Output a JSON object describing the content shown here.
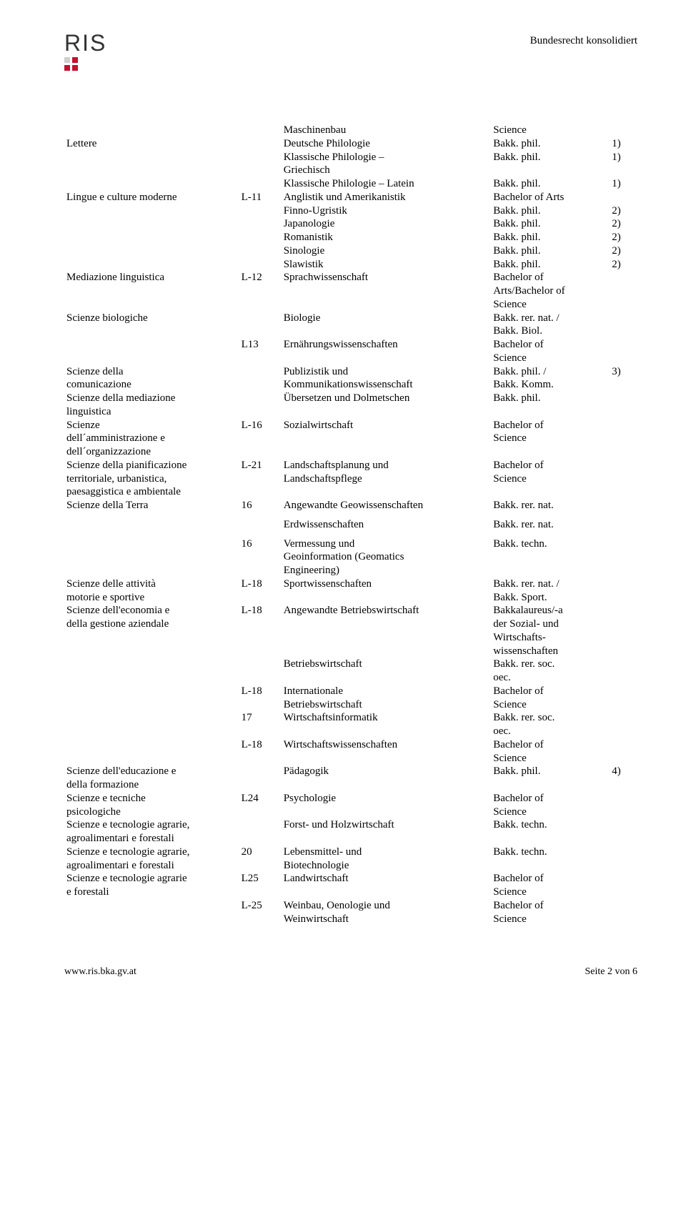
{
  "header": {
    "logo_text": "RIS",
    "right_text": "Bundesrecht konsolidiert"
  },
  "rows": [
    {
      "col1": "",
      "col2": "",
      "col3": "Maschinenbau",
      "col4": "Science",
      "col5": ""
    },
    {
      "col1": "Lettere",
      "col2": "",
      "col3": "Deutsche Philologie",
      "col4": "Bakk. phil.",
      "col5": "1)"
    },
    {
      "col1": "",
      "col2": "",
      "col3": "Klassische Philologie –",
      "col4": "Bakk. phil.",
      "col5": "1)"
    },
    {
      "col1": "",
      "col2": "",
      "col3": "Griechisch",
      "col4": "",
      "col5": ""
    },
    {
      "col1": "",
      "col2": "",
      "col3": "Klassische Philologie – Latein",
      "col4": "Bakk. phil.",
      "col5": "1)"
    },
    {
      "col1": "Lingue e culture moderne",
      "col2": "L-11",
      "col3": "Anglistik und Amerikanistik",
      "col4": "Bachelor of Arts",
      "col5": ""
    },
    {
      "col1": "",
      "col2": "",
      "col3": "Finno-Ugristik",
      "col4": "Bakk. phil.",
      "col5": "2)"
    },
    {
      "col1": "",
      "col2": "",
      "col3": "Japanologie",
      "col4": "Bakk. phil.",
      "col5": "2)"
    },
    {
      "col1": "",
      "col2": "",
      "col3": "Romanistik",
      "col4": "Bakk. phil.",
      "col5": "2)"
    },
    {
      "col1": "",
      "col2": "",
      "col3": "Sinologie",
      "col4": "Bakk. phil.",
      "col5": "2)"
    },
    {
      "col1": "",
      "col2": "",
      "col3": "Slawistik",
      "col4": "Bakk. phil.",
      "col5": "2)"
    },
    {
      "col1": "Mediazione linguistica",
      "col2": "L-12",
      "col3": "Sprachwissenschaft",
      "col4": "Bachelor of",
      "col5": ""
    },
    {
      "col1": "",
      "col2": "",
      "col3": "",
      "col4": "Arts/Bachelor of",
      "col5": ""
    },
    {
      "col1": "",
      "col2": "",
      "col3": "",
      "col4": "Science",
      "col5": ""
    },
    {
      "col1": "Scienze biologiche",
      "col2": "",
      "col3": "Biologie",
      "col4": "Bakk. rer. nat. /",
      "col5": ""
    },
    {
      "col1": "",
      "col2": "",
      "col3": "",
      "col4": "Bakk. Biol.",
      "col5": ""
    },
    {
      "col1": "",
      "col2": "L13",
      "col3": "Ernährungswissenschaften",
      "col4": "Bachelor of",
      "col5": ""
    },
    {
      "col1": "",
      "col2": "",
      "col3": "",
      "col4": "Science",
      "col5": ""
    },
    {
      "col1": "Scienze della",
      "col2": "",
      "col3": "Publizistik und",
      "col4": "Bakk. phil. /",
      "col5": "3)"
    },
    {
      "col1": "comunicazione",
      "col2": "",
      "col3": "Kommunikationswissenschaft",
      "col4": "Bakk. Komm.",
      "col5": ""
    },
    {
      "col1": "Scienze della mediazione",
      "col2": "",
      "col3": "Übersetzen und Dolmetschen",
      "col4": "Bakk. phil.",
      "col5": ""
    },
    {
      "col1": "linguistica",
      "col2": "",
      "col3": "",
      "col4": "",
      "col5": ""
    },
    {
      "col1": "Scienze",
      "col2": "L-16",
      "col3": "Sozialwirtschaft",
      "col4": "Bachelor of",
      "col5": ""
    },
    {
      "col1": "dell´amministrazione e",
      "col2": "",
      "col3": "",
      "col4": "Science",
      "col5": ""
    },
    {
      "col1": "dell´organizzazione",
      "col2": "",
      "col3": "",
      "col4": "",
      "col5": ""
    },
    {
      "col1": "Scienze della pianificazione",
      "col2": "L-21",
      "col3": "Landschaftsplanung und",
      "col4": "Bachelor of",
      "col5": ""
    },
    {
      "col1": "territoriale, urbanistica,",
      "col2": "",
      "col3": "Landschaftspflege",
      "col4": "Science",
      "col5": ""
    },
    {
      "col1": "paesaggistica e ambientale",
      "col2": "",
      "col3": "",
      "col4": "",
      "col5": ""
    },
    {
      "col1": "Scienze della Terra",
      "col2": "16",
      "col3": "Angewandte Geowissenschaften",
      "col4": "Bakk. rer. nat.",
      "col5": ""
    },
    {
      "spacer": true
    },
    {
      "col1": "",
      "col2": "",
      "col3": "Erdwissenschaften",
      "col4": "Bakk. rer. nat.",
      "col5": ""
    },
    {
      "spacer": true
    },
    {
      "col1": "",
      "col2": "16",
      "col3": "Vermessung und",
      "col4": "Bakk. techn.",
      "col5": ""
    },
    {
      "col1": "",
      "col2": "",
      "col3": "Geoinformation (Geomatics",
      "col4": "",
      "col5": ""
    },
    {
      "col1": "",
      "col2": "",
      "col3": "Engineering)",
      "col4": "",
      "col5": ""
    },
    {
      "col1": "Scienze delle attività",
      "col2": "L-18",
      "col3": "Sportwissenschaften",
      "col4": "Bakk. rer. nat. /",
      "col5": ""
    },
    {
      "col1": "motorie e sportive",
      "col2": "",
      "col3": "",
      "col4": "Bakk. Sport.",
      "col5": ""
    },
    {
      "col1": "Scienze dell'economia e",
      "col2": "L-18",
      "col3": "Angewandte Betriebswirtschaft",
      "col4": "Bakkalaureus/-a",
      "col5": ""
    },
    {
      "col1": "della gestione aziendale",
      "col2": "",
      "col3": "",
      "col4": "der Sozial- und",
      "col5": ""
    },
    {
      "col1": "",
      "col2": "",
      "col3": "",
      "col4": "Wirtschafts-",
      "col5": ""
    },
    {
      "col1": "",
      "col2": "",
      "col3": "",
      "col4": "wissenschaften",
      "col5": ""
    },
    {
      "col1": "",
      "col2": "",
      "col3": "Betriebswirtschaft",
      "col4": "Bakk. rer. soc.",
      "col5": ""
    },
    {
      "col1": "",
      "col2": "",
      "col3": "",
      "col4": "oec.",
      "col5": ""
    },
    {
      "col1": "",
      "col2": "L-18",
      "col3": "Internationale",
      "col4": "Bachelor of",
      "col5": ""
    },
    {
      "col1": "",
      "col2": "",
      "col3": "Betriebswirtschaft",
      "col4": "Science",
      "col5": ""
    },
    {
      "col1": "",
      "col2": "17",
      "col3": "Wirtschaftsinformatik",
      "col4": "Bakk. rer. soc.",
      "col5": ""
    },
    {
      "col1": "",
      "col2": "",
      "col3": "",
      "col4": "oec.",
      "col5": ""
    },
    {
      "col1": "",
      "col2": "L-18",
      "col3": "Wirtschaftswissenschaften",
      "col4": "Bachelor of",
      "col5": ""
    },
    {
      "col1": "",
      "col2": "",
      "col3": "",
      "col4": "Science",
      "col5": ""
    },
    {
      "col1": "Scienze dell'educazione e",
      "col2": "",
      "col3": "Pädagogik",
      "col4": "Bakk. phil.",
      "col5": "4)"
    },
    {
      "col1": "della formazione",
      "col2": "",
      "col3": "",
      "col4": "",
      "col5": ""
    },
    {
      "col1": "Scienze e tecniche",
      "col2": "L24",
      "col3": "Psychologie",
      "col4": "Bachelor of",
      "col5": ""
    },
    {
      "col1": "psicologiche",
      "col2": "",
      "col3": "",
      "col4": "Science",
      "col5": ""
    },
    {
      "col1": "Scienze e tecnologie agrarie,",
      "col2": "",
      "col3": "Forst- und Holzwirtschaft",
      "col4": "Bakk. techn.",
      "col5": ""
    },
    {
      "col1": "agroalimentari e forestali",
      "col2": "",
      "col3": "",
      "col4": "",
      "col5": ""
    },
    {
      "col1": "Scienze e tecnologie agrarie,",
      "col2": "20",
      "col3": "Lebensmittel- und",
      "col4": "Bakk. techn.",
      "col5": ""
    },
    {
      "col1": "agroalimentari e forestali",
      "col2": "",
      "col3": "Biotechnologie",
      "col4": "",
      "col5": ""
    },
    {
      "col1": "Scienze e tecnologie agrarie",
      "col2": "L25",
      "col3": "Landwirtschaft",
      "col4": "Bachelor of",
      "col5": ""
    },
    {
      "col1": "e forestali",
      "col2": "",
      "col3": "",
      "col4": "Science",
      "col5": ""
    },
    {
      "col1": "",
      "col2": "L-25",
      "col3": "Weinbau, Oenologie und",
      "col4": "Bachelor of",
      "col5": ""
    },
    {
      "col1": "",
      "col2": "",
      "col3": "Weinwirtschaft",
      "col4": "Science",
      "col5": ""
    }
  ],
  "footer": {
    "left": "www.ris.bka.gv.at",
    "right": "Seite 2 von 6"
  }
}
